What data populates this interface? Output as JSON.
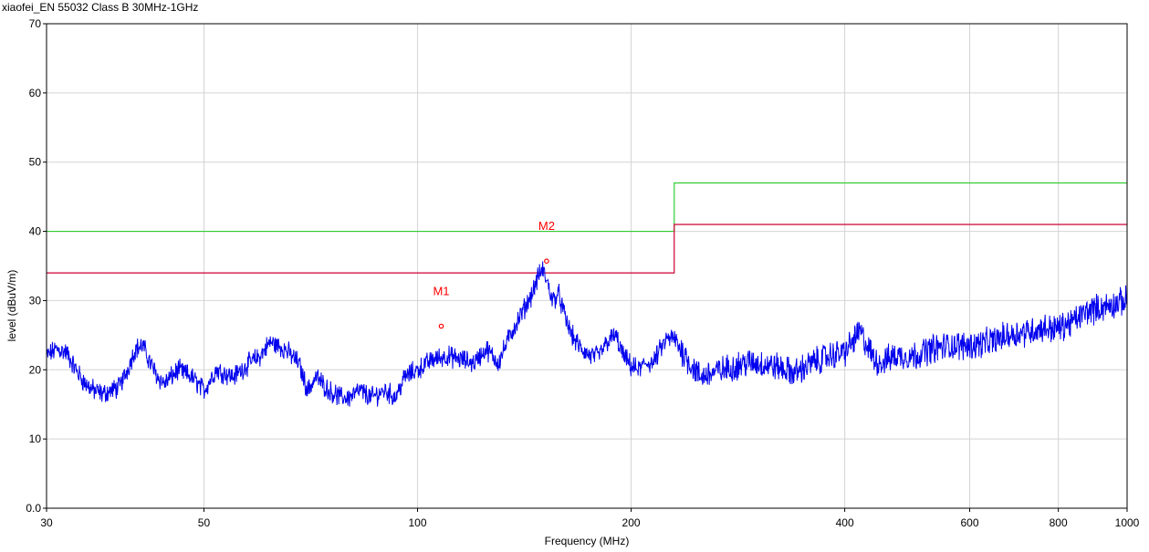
{
  "chart_title": "xiaofei_EN 55032 Class B 30MHz-1GHz",
  "chart_data": {
    "type": "line",
    "title": "xiaofei_EN 55032 Class B 30MHz-1GHz",
    "xlabel": "Frequency (MHz)",
    "ylabel": "level (dBuV/m)",
    "x_scale": "log",
    "xlim": [
      30,
      1000
    ],
    "ylim": [
      0,
      70
    ],
    "x_ticks": [
      30,
      50,
      100,
      200,
      400,
      600,
      800,
      1000
    ],
    "x_tick_labels": [
      "30",
      "50",
      "100",
      "200",
      "400",
      "600",
      "800",
      "1000"
    ],
    "y_ticks": [
      0,
      10,
      20,
      30,
      40,
      50,
      60,
      70
    ],
    "y_tick_labels": [
      "0.0",
      "10",
      "20",
      "30",
      "40",
      "50",
      "60",
      "70"
    ],
    "grid": true,
    "series": [
      {
        "color": "#0000ee",
        "kind": "trace",
        "x": [
          30,
          31,
          32,
          33,
          34,
          35,
          36,
          37,
          38,
          39,
          40,
          41,
          42,
          43,
          44,
          46,
          48,
          50,
          52,
          55,
          58,
          60,
          62,
          65,
          68,
          70,
          72,
          75,
          78,
          80,
          83,
          86,
          90,
          93,
          96,
          100,
          105,
          110,
          115,
          120,
          125,
          130,
          135,
          140,
          145,
          148,
          150,
          152,
          155,
          158,
          162,
          166,
          170,
          175,
          180,
          185,
          190,
          195,
          200,
          205,
          210,
          215,
          220,
          225,
          230,
          235,
          240,
          250,
          260,
          270,
          280,
          290,
          300,
          320,
          340,
          360,
          380,
          400,
          410,
          420,
          430,
          440,
          450,
          470,
          500,
          530,
          560,
          600,
          640,
          680,
          720,
          760,
          800,
          840,
          880,
          920,
          960,
          1000
        ],
        "y": [
          22,
          23,
          22.5,
          20,
          18,
          17,
          16.5,
          17,
          17.5,
          20,
          23,
          23.5,
          21,
          19,
          18,
          20,
          19,
          17,
          20,
          19,
          21,
          22,
          24,
          23,
          21,
          17,
          19,
          17,
          16,
          16,
          17,
          16,
          17,
          16,
          19,
          20,
          21.5,
          22,
          21.5,
          21,
          23,
          21,
          25,
          28,
          31,
          33.5,
          34.5,
          33,
          30,
          31,
          27,
          24.5,
          23,
          22,
          22,
          24,
          25,
          22,
          20.5,
          20,
          21,
          21,
          23,
          24.5,
          24.5,
          23,
          21.5,
          19,
          19.5,
          20,
          20.5,
          21,
          21,
          20.5,
          19.5,
          21,
          22,
          22.5,
          24,
          25.5,
          23.5,
          21.5,
          21,
          22,
          22,
          23,
          23.5,
          23.5,
          24,
          25,
          25.5,
          26,
          26,
          27,
          28.5,
          29,
          29.5,
          30
        ]
      },
      {
        "color": "#33cc33",
        "kind": "limit",
        "x": [
          30,
          230,
          230,
          1000
        ],
        "y": [
          40,
          40,
          47,
          47
        ]
      },
      {
        "color": "#cc0033",
        "kind": "limit",
        "x": [
          30,
          230,
          230,
          1000
        ],
        "y": [
          34,
          34,
          41,
          41
        ]
      }
    ],
    "markers": [
      {
        "label": "M1",
        "x": 108,
        "y": 26.3,
        "color": "#ff0000"
      },
      {
        "label": "M2",
        "x": 152,
        "y": 35.7,
        "color": "#ff0000"
      }
    ]
  }
}
